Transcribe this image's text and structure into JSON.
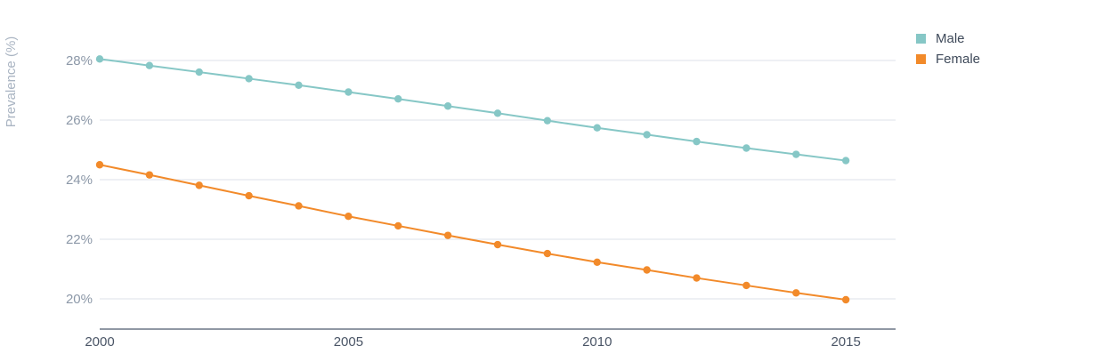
{
  "chart_data": {
    "type": "line",
    "ylabel": "Prevalence (%)",
    "xlabel": "",
    "y_tick_labels": [
      "20%",
      "22%",
      "24%",
      "26%",
      "28%"
    ],
    "y_ticks": [
      20,
      22,
      24,
      26,
      28
    ],
    "x_tick_labels": [
      "2000",
      "2005",
      "2010",
      "2015"
    ],
    "x_ticks": [
      2000,
      2005,
      2010,
      2015
    ],
    "xlim": [
      2000,
      2016
    ],
    "ylim": [
      19.0,
      29.2
    ],
    "grid": true,
    "legend_position": "top-right",
    "x": [
      2000,
      2001,
      2002,
      2003,
      2004,
      2005,
      2006,
      2007,
      2008,
      2009,
      2010,
      2011,
      2012,
      2013,
      2014,
      2015
    ],
    "series": [
      {
        "name": "Male",
        "color": "#86c7c6",
        "values": [
          28.05,
          27.83,
          27.61,
          27.39,
          27.17,
          26.94,
          26.71,
          26.47,
          26.23,
          25.98,
          25.74,
          25.51,
          25.28,
          25.06,
          24.85,
          24.64
        ]
      },
      {
        "name": "Female",
        "color": "#f28a2a",
        "values": [
          24.5,
          24.16,
          23.81,
          23.46,
          23.12,
          22.77,
          22.45,
          22.13,
          21.82,
          21.52,
          21.23,
          20.97,
          20.7,
          20.45,
          20.2,
          19.97
        ]
      }
    ]
  }
}
